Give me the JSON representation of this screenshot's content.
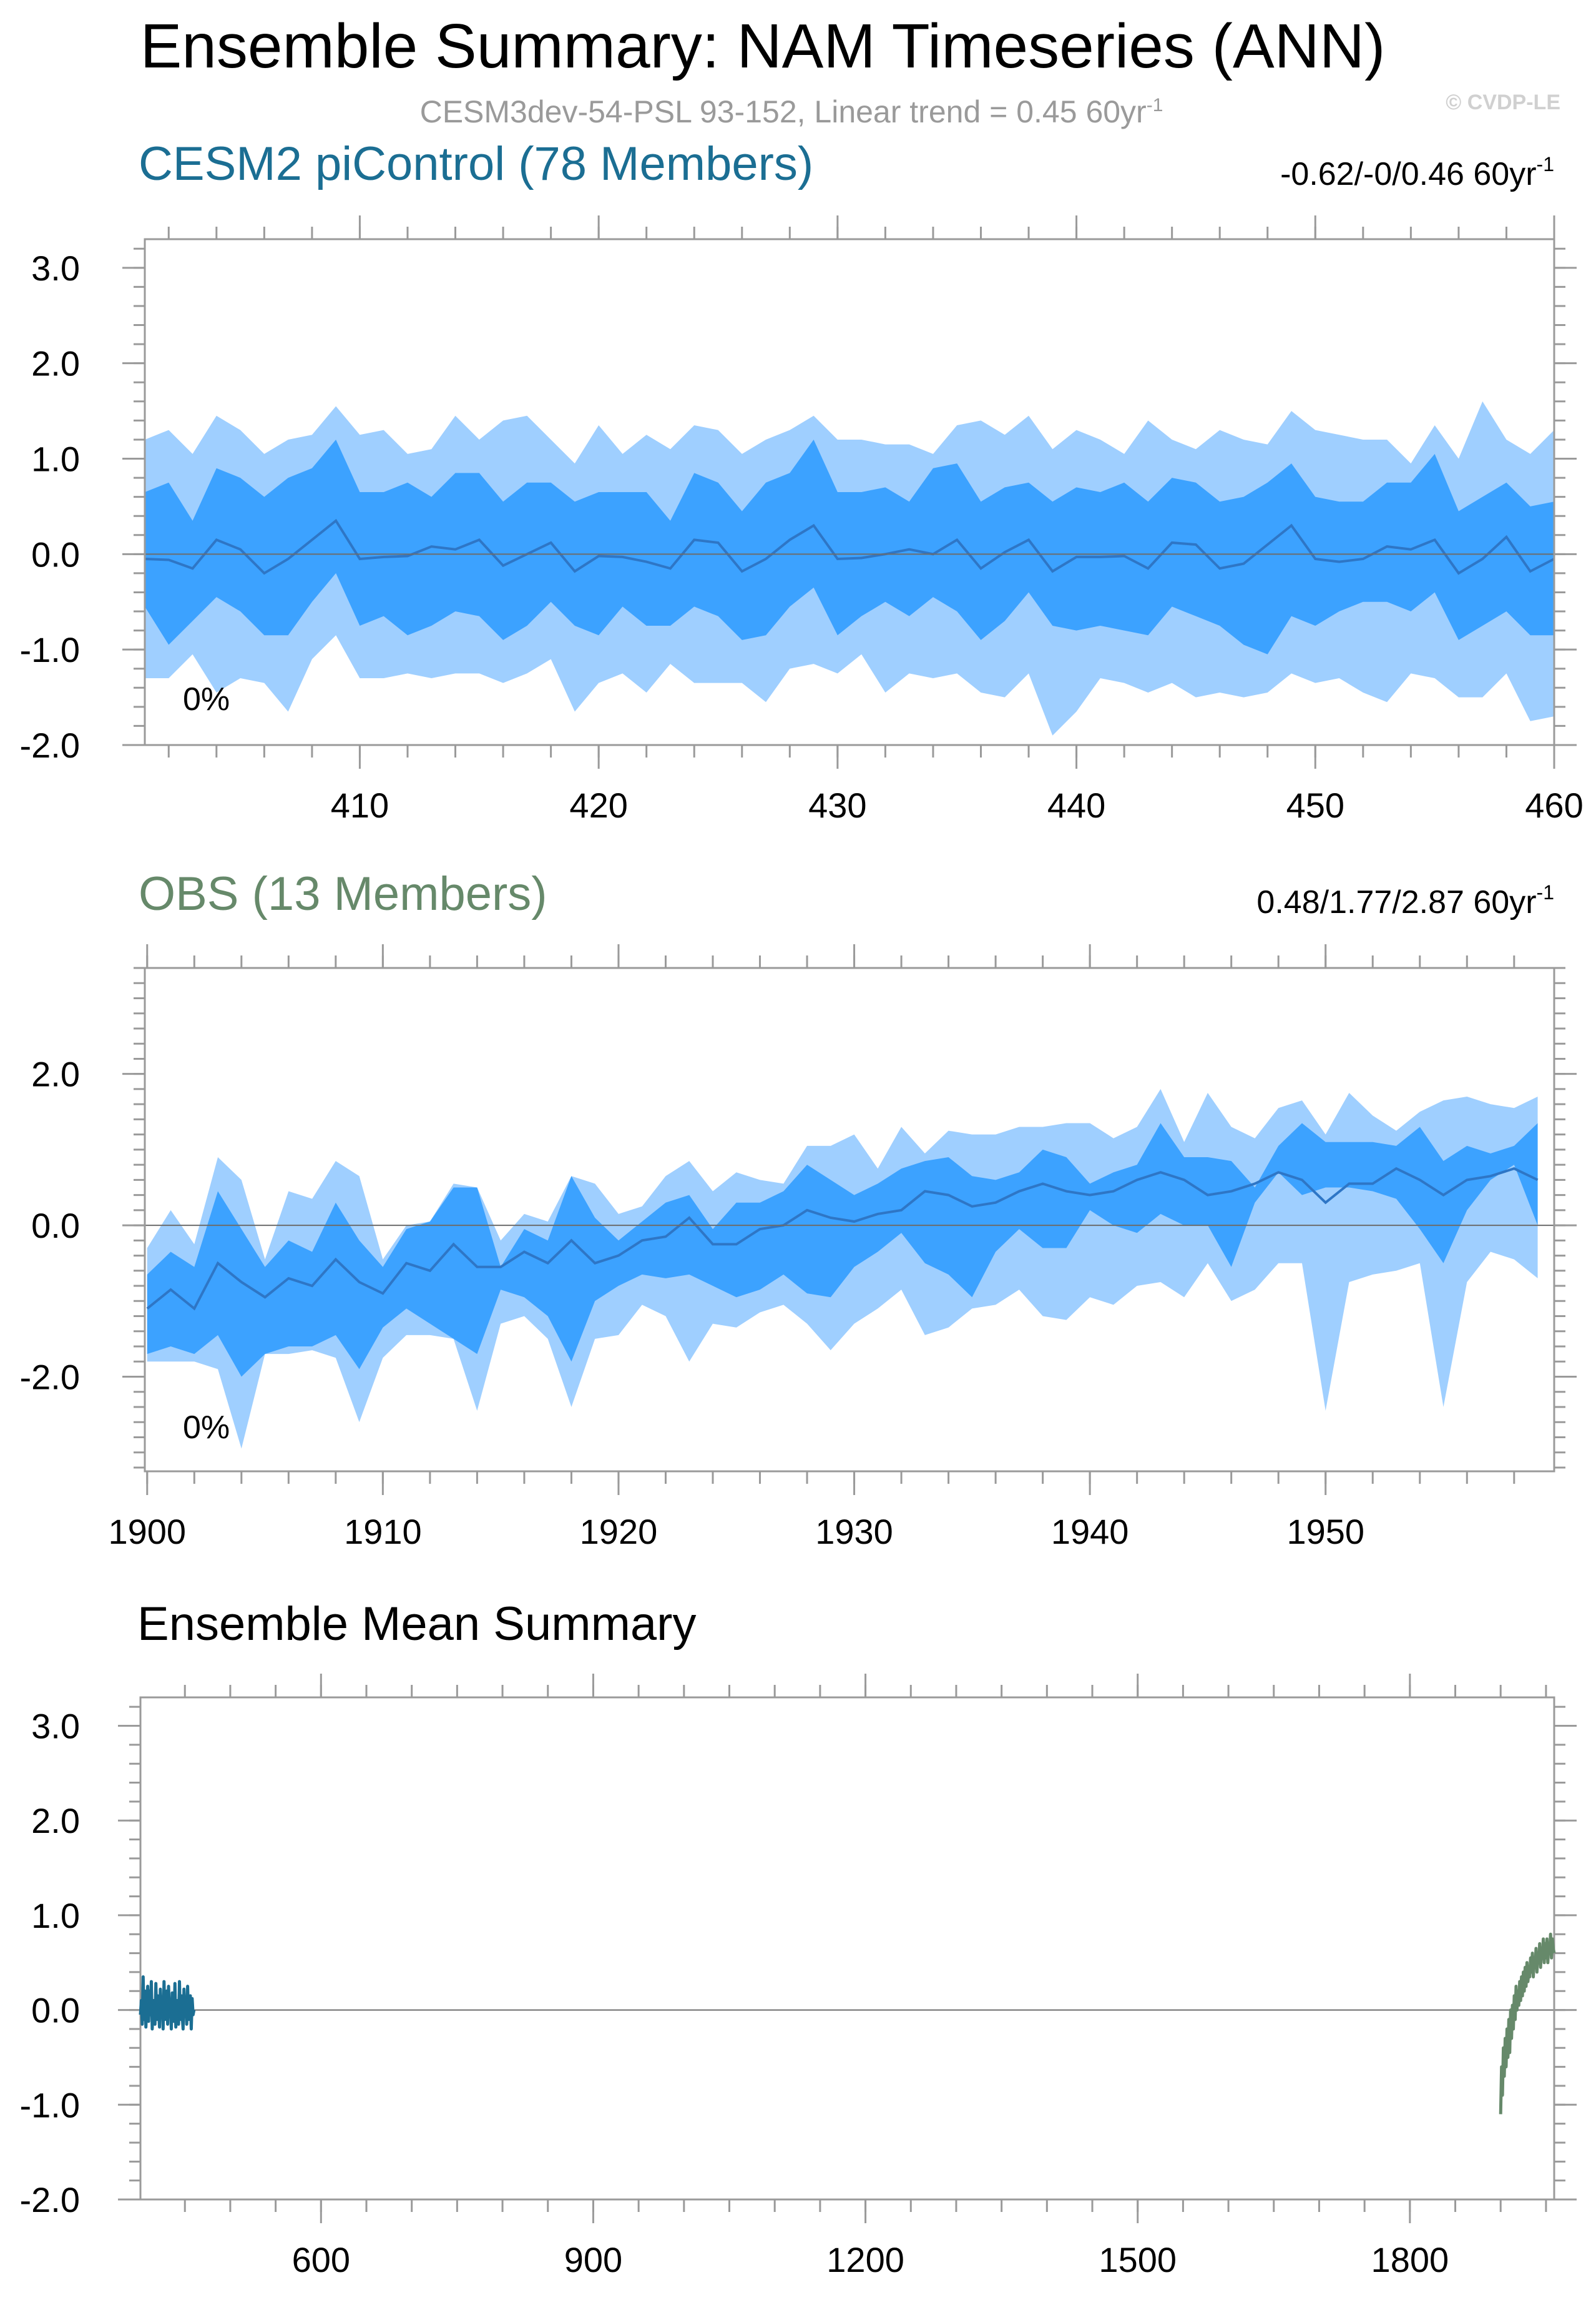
{
  "title": "Ensemble Summary: NAM Timeseries (ANN)",
  "subtitle": "CESM3dev-54-PSL 93-152, Linear trend = 0.45 60yr",
  "subtitle_sup": "-1",
  "credit": "© CVDP-LE",
  "colors": {
    "cesm2": "#1b6e93",
    "obs": "#66896a",
    "band_outer": "#9fcfff",
    "band_inner": "#3ca2ff",
    "mean_line": "#2e76c6",
    "frame": "#9a9a9a"
  },
  "chart_data": [
    {
      "id": "cesm2",
      "type": "area",
      "title": "CESM2 piControl (78 Members)",
      "trend_text": "-0.62/-0/0.46 60yr",
      "trend_sup": "-1",
      "pct_label": "0%",
      "x_start": 401,
      "xlim": [
        401,
        460
      ],
      "ylim": [
        -2.0,
        3.3
      ],
      "xticks": [
        410,
        420,
        430,
        440,
        450,
        460
      ],
      "xtick_labels": [
        "410",
        "420",
        "430",
        "440",
        "450",
        "460"
      ],
      "yticks": [
        3.0,
        2.0,
        1.0,
        0.0,
        -1.0,
        -2.0
      ],
      "ytick_labels": [
        "3.0",
        "2.0",
        "1.0",
        "0.0",
        "-1.0",
        "-2.0"
      ],
      "mean": [
        -0.05,
        -0.06,
        -0.15,
        0.15,
        0.05,
        -0.2,
        -0.05,
        0.15,
        0.35,
        -0.05,
        -0.03,
        -0.02,
        0.08,
        0.05,
        0.15,
        -0.12,
        0.0,
        0.12,
        -0.18,
        -0.02,
        -0.03,
        -0.08,
        -0.15,
        0.15,
        0.12,
        -0.18,
        -0.05,
        0.15,
        0.3,
        -0.05,
        -0.04,
        0.0,
        0.05,
        0.0,
        0.15,
        -0.15,
        0.02,
        0.15,
        -0.18,
        -0.03,
        -0.03,
        -0.02,
        -0.15,
        0.12,
        0.1,
        -0.15,
        -0.1,
        0.1,
        0.3,
        -0.05,
        -0.08,
        -0.05,
        0.08,
        0.05,
        0.15,
        -0.2,
        -0.05,
        0.18,
        -0.18,
        -0.05
      ],
      "inner_hi": [
        0.65,
        0.75,
        0.35,
        0.9,
        0.8,
        0.6,
        0.8,
        0.9,
        1.2,
        0.65,
        0.65,
        0.75,
        0.6,
        0.85,
        0.85,
        0.55,
        0.75,
        0.75,
        0.55,
        0.65,
        0.65,
        0.65,
        0.35,
        0.85,
        0.75,
        0.45,
        0.75,
        0.85,
        1.2,
        0.65,
        0.65,
        0.7,
        0.55,
        0.9,
        0.95,
        0.55,
        0.7,
        0.75,
        0.55,
        0.7,
        0.65,
        0.75,
        0.55,
        0.8,
        0.75,
        0.55,
        0.6,
        0.75,
        0.95,
        0.6,
        0.55,
        0.55,
        0.75,
        0.75,
        1.05,
        0.45,
        0.6,
        0.75,
        0.5,
        0.55
      ],
      "inner_lo": [
        -0.55,
        -0.95,
        -0.7,
        -0.45,
        -0.6,
        -0.85,
        -0.85,
        -0.5,
        -0.2,
        -0.75,
        -0.65,
        -0.85,
        -0.75,
        -0.6,
        -0.65,
        -0.9,
        -0.75,
        -0.5,
        -0.75,
        -0.85,
        -0.55,
        -0.75,
        -0.75,
        -0.55,
        -0.65,
        -0.9,
        -0.85,
        -0.55,
        -0.35,
        -0.85,
        -0.65,
        -0.5,
        -0.65,
        -0.45,
        -0.6,
        -0.9,
        -0.7,
        -0.4,
        -0.75,
        -0.8,
        -0.75,
        -0.8,
        -0.85,
        -0.55,
        -0.65,
        -0.75,
        -0.95,
        -1.05,
        -0.65,
        -0.75,
        -0.6,
        -0.5,
        -0.5,
        -0.6,
        -0.4,
        -0.9,
        -0.75,
        -0.6,
        -0.85,
        -0.85
      ],
      "outer_hi": [
        1.2,
        1.3,
        1.05,
        1.45,
        1.3,
        1.05,
        1.2,
        1.25,
        1.55,
        1.25,
        1.3,
        1.05,
        1.1,
        1.45,
        1.2,
        1.4,
        1.45,
        1.2,
        0.95,
        1.35,
        1.05,
        1.25,
        1.1,
        1.35,
        1.3,
        1.05,
        1.2,
        1.3,
        1.45,
        1.2,
        1.2,
        1.15,
        1.15,
        1.05,
        1.35,
        1.4,
        1.25,
        1.45,
        1.1,
        1.3,
        1.2,
        1.05,
        1.4,
        1.2,
        1.1,
        1.3,
        1.2,
        1.15,
        1.5,
        1.3,
        1.25,
        1.2,
        1.2,
        0.95,
        1.35,
        1.0,
        1.6,
        1.2,
        1.05,
        1.3
      ],
      "outer_lo": [
        -1.3,
        -1.3,
        -1.05,
        -1.45,
        -1.3,
        -1.35,
        -1.65,
        -1.1,
        -0.85,
        -1.3,
        -1.3,
        -1.25,
        -1.3,
        -1.25,
        -1.25,
        -1.35,
        -1.25,
        -1.1,
        -1.65,
        -1.35,
        -1.25,
        -1.45,
        -1.15,
        -1.35,
        -1.35,
        -1.35,
        -1.55,
        -1.2,
        -1.15,
        -1.25,
        -1.05,
        -1.45,
        -1.25,
        -1.3,
        -1.25,
        -1.45,
        -1.5,
        -1.25,
        -1.9,
        -1.65,
        -1.3,
        -1.35,
        -1.45,
        -1.35,
        -1.5,
        -1.45,
        -1.5,
        -1.45,
        -1.25,
        -1.35,
        -1.3,
        -1.45,
        -1.55,
        -1.25,
        -1.3,
        -1.5,
        -1.5,
        -1.25,
        -1.75,
        -1.7
      ]
    },
    {
      "id": "obs",
      "type": "area",
      "title": "OBS (13 Members)",
      "trend_text": "0.48/1.77/2.87 60yr",
      "trend_sup": "-1",
      "pct_label": "0%",
      "x_start": 1900,
      "xlim": [
        1899.9,
        1959.7
      ],
      "ylim": [
        -3.25,
        3.4
      ],
      "xticks": [
        1900,
        1910,
        1920,
        1930,
        1940,
        1950
      ],
      "xtick_labels": [
        "1900",
        "1910",
        "1920",
        "1930",
        "1940",
        "1950"
      ],
      "yticks": [
        2.0,
        0.0,
        -2.0
      ],
      "ytick_labels": [
        "2.0",
        "0.0",
        "-2.0"
      ],
      "mean": [
        -1.1,
        -0.85,
        -1.1,
        -0.5,
        -0.75,
        -0.95,
        -0.7,
        -0.8,
        -0.45,
        -0.75,
        -0.9,
        -0.5,
        -0.6,
        -0.25,
        -0.55,
        -0.55,
        -0.35,
        -0.5,
        -0.2,
        -0.5,
        -0.4,
        -0.2,
        -0.15,
        0.1,
        -0.25,
        -0.25,
        -0.05,
        0.0,
        0.2,
        0.1,
        0.05,
        0.15,
        0.2,
        0.45,
        0.4,
        0.25,
        0.3,
        0.45,
        0.55,
        0.45,
        0.4,
        0.45,
        0.6,
        0.7,
        0.6,
        0.4,
        0.45,
        0.55,
        0.7,
        0.6,
        0.3,
        0.55,
        0.55,
        0.75,
        0.6,
        0.4,
        0.6,
        0.65,
        0.75,
        0.6
      ],
      "inner_hi": [
        -0.65,
        -0.35,
        -0.55,
        0.45,
        -0.05,
        -0.55,
        -0.2,
        -0.35,
        0.3,
        -0.2,
        -0.55,
        -0.05,
        0.05,
        0.5,
        0.5,
        -0.55,
        -0.05,
        -0.2,
        0.65,
        0.1,
        -0.2,
        0.05,
        0.3,
        0.4,
        -0.05,
        0.3,
        0.3,
        0.45,
        0.8,
        0.6,
        0.4,
        0.55,
        0.75,
        0.85,
        0.9,
        0.65,
        0.6,
        0.7,
        1.0,
        0.9,
        0.55,
        0.7,
        0.8,
        1.35,
        0.9,
        0.9,
        0.85,
        0.5,
        1.05,
        1.35,
        1.1,
        1.1,
        1.1,
        1.05,
        1.3,
        0.85,
        1.05,
        0.95,
        1.05,
        1.35
      ],
      "inner_lo": [
        -1.7,
        -1.6,
        -1.7,
        -1.45,
        -2.0,
        -1.7,
        -1.6,
        -1.6,
        -1.45,
        -1.9,
        -1.35,
        -1.1,
        -1.3,
        -1.5,
        -1.7,
        -0.85,
        -0.95,
        -1.2,
        -1.8,
        -1.0,
        -0.8,
        -0.65,
        -0.7,
        -0.65,
        -0.8,
        -0.95,
        -0.85,
        -0.65,
        -0.9,
        -0.95,
        -0.55,
        -0.35,
        -0.1,
        -0.5,
        -0.65,
        -0.95,
        -0.35,
        -0.05,
        -0.3,
        -0.3,
        0.2,
        0.0,
        -0.1,
        0.15,
        0.0,
        0.0,
        -0.55,
        0.3,
        0.7,
        0.4,
        0.5,
        0.5,
        0.45,
        0.35,
        -0.05,
        -0.5,
        0.2,
        0.6,
        0.8,
        0.0
      ],
      "outer_hi": [
        -0.3,
        0.2,
        -0.25,
        0.9,
        0.6,
        -0.45,
        0.45,
        0.35,
        0.85,
        0.65,
        -0.45,
        0.0,
        0.05,
        0.55,
        0.5,
        -0.2,
        0.15,
        0.05,
        0.65,
        0.55,
        0.15,
        0.25,
        0.65,
        0.85,
        0.45,
        0.7,
        0.6,
        0.55,
        1.05,
        1.05,
        1.2,
        0.75,
        1.3,
        0.95,
        1.25,
        1.2,
        1.2,
        1.3,
        1.3,
        1.35,
        1.35,
        1.15,
        1.3,
        1.8,
        1.1,
        1.75,
        1.3,
        1.15,
        1.55,
        1.65,
        1.2,
        1.75,
        1.45,
        1.25,
        1.5,
        1.65,
        1.7,
        1.6,
        1.55,
        1.7
      ],
      "outer_lo": [
        -1.8,
        -1.8,
        -1.8,
        -1.9,
        -2.95,
        -1.7,
        -1.7,
        -1.65,
        -1.75,
        -2.6,
        -1.75,
        -1.45,
        -1.45,
        -1.5,
        -2.45,
        -1.3,
        -1.2,
        -1.5,
        -2.4,
        -1.5,
        -1.45,
        -1.05,
        -1.2,
        -1.8,
        -1.3,
        -1.35,
        -1.15,
        -1.05,
        -1.3,
        -1.65,
        -1.3,
        -1.1,
        -0.85,
        -1.45,
        -1.35,
        -1.1,
        -1.05,
        -0.85,
        -1.2,
        -1.25,
        -0.95,
        -1.05,
        -0.8,
        -0.75,
        -0.95,
        -0.5,
        -1.0,
        -0.85,
        -0.5,
        -0.5,
        -2.45,
        -0.75,
        -0.65,
        -0.6,
        -0.5,
        -2.4,
        -0.75,
        -0.35,
        -0.45,
        -0.7
      ]
    },
    {
      "id": "summary",
      "type": "line",
      "title": "Ensemble Mean Summary",
      "xlim": [
        401,
        1959
      ],
      "ylim": [
        -2.0,
        3.3
      ],
      "xticks": [
        600,
        900,
        1200,
        1500,
        1800
      ],
      "xtick_labels": [
        "600",
        "900",
        "1200",
        "1500",
        "1800"
      ],
      "yticks": [
        3.0,
        2.0,
        1.0,
        0.0,
        -1.0,
        -2.0
      ],
      "ytick_labels": [
        "3.0",
        "2.0",
        "1.0",
        "0.0",
        "-1.0",
        "-2.0"
      ],
      "series": [
        {
          "name": "CESM2 piControl",
          "color": "#1b6e93",
          "x_start": 401,
          "values": [
            -0.05,
            0.1,
            -0.15,
            0.35,
            -0.1,
            0.2,
            -0.18,
            0.05,
            0.25,
            -0.12,
            0.2,
            -0.05,
            0.3,
            -0.2,
            0.1,
            0.05,
            -0.15,
            0.28,
            -0.1,
            0.15,
            0.0,
            -0.18,
            0.22,
            -0.05,
            0.1,
            -0.2,
            0.3,
            -0.1,
            0.05,
            0.2,
            -0.15,
            0.25,
            -0.05,
            0.1,
            -0.2,
            0.18,
            0.0,
            -0.12,
            0.28,
            -0.18,
            0.1,
            0.05,
            -0.15,
            0.3,
            -0.1,
            0.15,
            -0.05,
            -0.2,
            0.22,
            0.0,
            0.1,
            -0.15,
            0.25,
            -0.1,
            0.05,
            0.15,
            -0.2,
            0.12,
            -0.05,
            0.0
          ]
        },
        {
          "name": "OBS",
          "color": "#66896a",
          "x_start": 1900,
          "values": [
            -1.1,
            -0.6,
            -0.9,
            -0.4,
            -0.7,
            -0.3,
            -0.6,
            -0.2,
            -0.5,
            -0.1,
            -0.45,
            0.0,
            -0.3,
            0.05,
            -0.2,
            0.15,
            -0.1,
            0.25,
            0.0,
            0.2,
            0.05,
            0.3,
            0.1,
            0.35,
            0.15,
            0.4,
            0.2,
            0.45,
            0.25,
            0.5,
            0.3,
            0.4,
            0.35,
            0.55,
            0.4,
            0.6,
            0.35,
            0.55,
            0.45,
            0.65,
            0.4,
            0.6,
            0.5,
            0.7,
            0.45,
            0.65,
            0.55,
            0.75,
            0.5,
            0.7,
            0.55,
            0.75,
            0.5,
            0.7,
            0.6,
            0.8,
            0.55,
            0.75,
            0.65,
            0.6
          ]
        }
      ]
    }
  ]
}
